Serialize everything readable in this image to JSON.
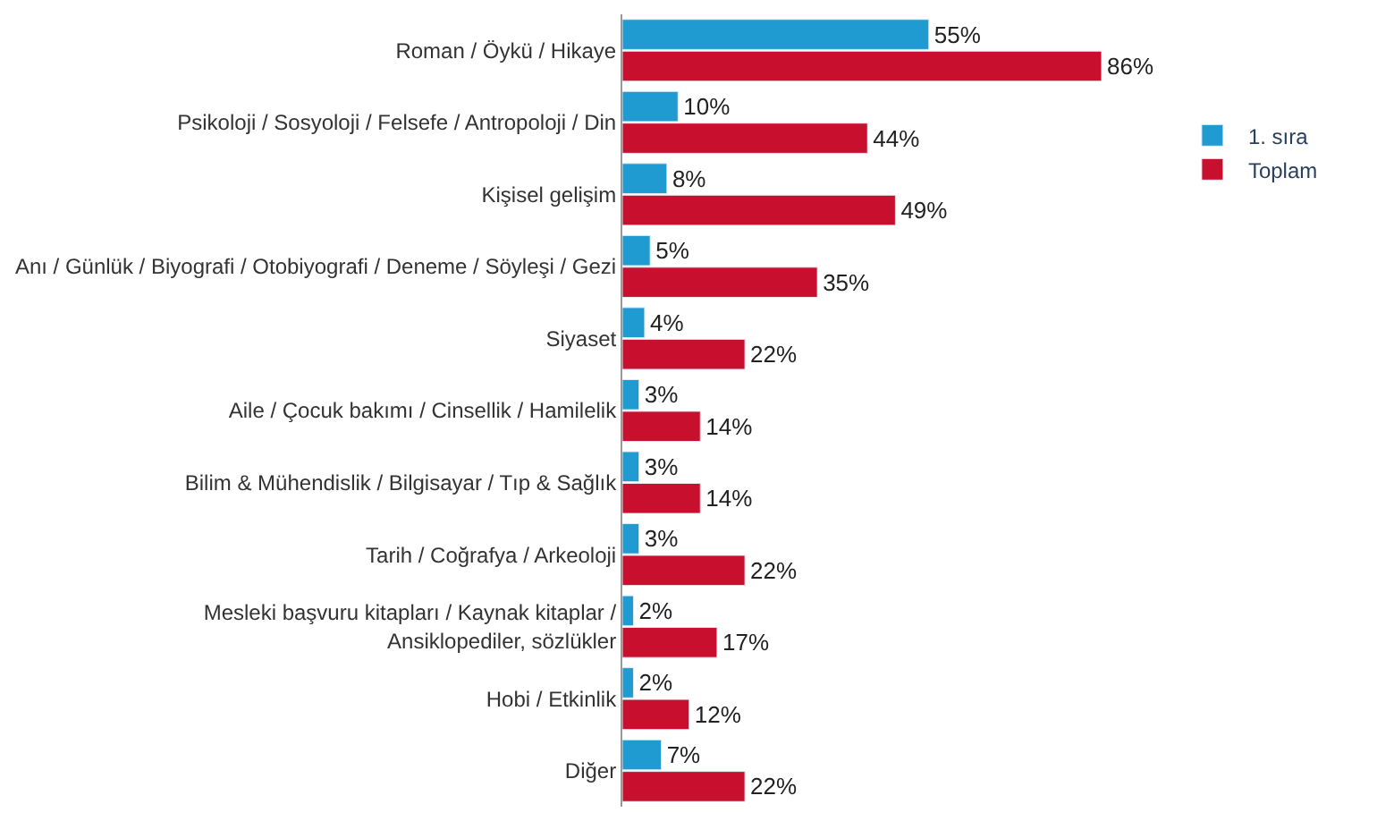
{
  "chart_data": {
    "type": "bar",
    "orientation": "horizontal",
    "data_labels": true,
    "legend": "top right",
    "tick_labels": "y",
    "categories": [
      "Roman / Öykü / Hikaye",
      "Psikoloji / Sosyoloji / Felsefe / Antropoloji / Din",
      "Kişisel gelişim",
      "Anı / Günlük / Biyografi / Otobiyografi / Deneme / Söyleşi / Gezi",
      "Siyaset",
      "Aile / Çocuk bakımı / Cinsellik / Hamilelik",
      "Bilim & Mühendislik / Bilgisayar / Tıp & Sağlık",
      "Tarih / Coğrafya / Arkeoloji",
      "Mesleki başvuru kitapları / Kaynak kitaplar /\nAnsiklopediler, sözlükler",
      "Hobi / Etkinlik",
      "Diğer"
    ],
    "series": [
      {
        "name": "1. sıra",
        "color": "#1f9bd1",
        "values": [
          55,
          10,
          8,
          5,
          4,
          3,
          3,
          3,
          2,
          2,
          7
        ],
        "value_labels": [
          "55%",
          "10%",
          "8%",
          "5%",
          "4%",
          "3%",
          "3%",
          "3%",
          "2%",
          "2%",
          "7%"
        ]
      },
      {
        "name": "Toplam",
        "color": "#c8102e",
        "values": [
          86,
          44,
          49,
          35,
          22,
          14,
          14,
          22,
          17,
          12,
          22
        ],
        "value_labels": [
          "86%",
          "44%",
          "49%",
          "35%",
          "22%",
          "14%",
          "14%",
          "22%",
          "17%",
          "12%",
          "22%"
        ]
      }
    ]
  }
}
